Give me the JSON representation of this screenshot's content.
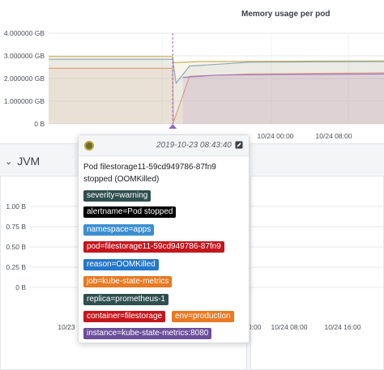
{
  "memory_panel": {
    "title": "Memory usage per pod"
  },
  "jvm_row": {
    "title": "JVM"
  },
  "annotation": {
    "timestamp": "2019-10-23 08:43:40",
    "text": "Pod filestorage11-59cd949786-87fn9 stopped (OOMKilled)",
    "tags": [
      {
        "label": "severity=warning",
        "color": "#2f4f4f"
      },
      {
        "label": "alertname=Pod stopped",
        "color": "#000000"
      },
      {
        "label": "namespace=apps",
        "color": "#3a8fd1"
      },
      {
        "label": "pod=filestorage11-59cd949786-87fn9",
        "color": "#c4161c"
      },
      {
        "label": "reason=OOMKilled",
        "color": "#2477c9"
      },
      {
        "label": "job=kube-state-metrics",
        "color": "#e87a23"
      },
      {
        "label": "replica=prometheus-1",
        "color": "#2f4f4f"
      },
      {
        "label": "container=filestorage",
        "color": "#c4161c"
      },
      {
        "label": "env=production",
        "color": "#e87a23"
      },
      {
        "label": "instance=kube-state-metrics:8080",
        "color": "#6a4f9a"
      }
    ]
  },
  "chart_data": [
    {
      "type": "area",
      "title": "Memory usage per pod",
      "y_tick_labels": [
        "4.000000 GB",
        "3.000000 GB",
        "2.000000 GB",
        "1.000000 GB",
        "0 B"
      ],
      "x_tick_labels": [
        "10/24 00:00",
        "10/24 08:00"
      ],
      "ylim": [
        0,
        4
      ],
      "y_unit": "GB",
      "series": [
        {
          "color": "#c7b25a",
          "x": [
            0,
            0.37,
            0.372,
            0.45,
            1
          ],
          "values": [
            2.97,
            2.97,
            2.7,
            2.75,
            2.78
          ]
        },
        {
          "color": "#e8a27a",
          "x": [
            0,
            0.37,
            0.372,
            0.42,
            0.6,
            1
          ],
          "values": [
            2.45,
            2.45,
            0.05,
            2.1,
            2.2,
            2.25
          ]
        },
        {
          "color": "#8fa7b8",
          "x": [
            0,
            0.37,
            0.38,
            0.42,
            0.6,
            1
          ],
          "values": [
            2.85,
            2.85,
            1.8,
            2.55,
            2.72,
            2.75
          ]
        },
        {
          "color": "#a575c9",
          "x": [
            0.4,
            0.5,
            0.7,
            1
          ],
          "values": [
            2.05,
            2.15,
            2.18,
            2.2
          ]
        }
      ],
      "annotation_marker": 0.37,
      "grid": true
    },
    {
      "type": "line",
      "y_tick_labels": [
        "1.00 B",
        "0.75 B",
        "0.50 B",
        "0.25 B",
        "0 B"
      ],
      "x_tick_labels": [
        "10/23",
        "10/24 00:00",
        "10/24 08:00",
        "10/24 16:00"
      ],
      "ylim": [
        0,
        1
      ],
      "grid": true
    }
  ]
}
